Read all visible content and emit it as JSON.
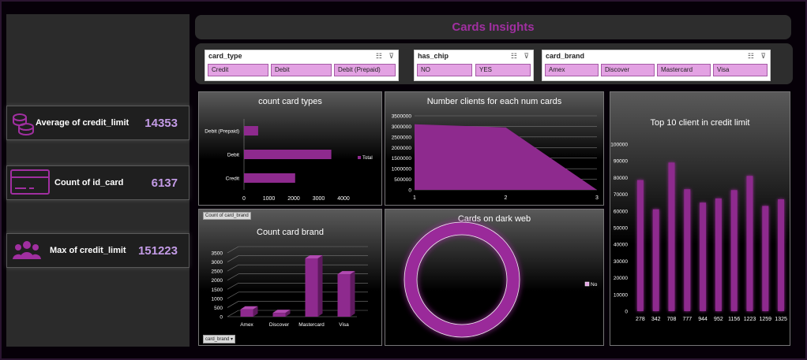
{
  "header": {
    "title": "Cards Insights"
  },
  "kpis": [
    {
      "icon": "coins-icon",
      "label": "Average of credit_limit",
      "value": "14353"
    },
    {
      "icon": "credit-card-icon",
      "label": "Count of id_card",
      "value": "6137"
    },
    {
      "icon": "people-icon",
      "label": "Max of credit_limit",
      "value": "151223"
    }
  ],
  "slicers": [
    {
      "title": "card_type",
      "items": [
        "Credit",
        "Debit",
        "Debit (Prepaid)"
      ]
    },
    {
      "title": "has_chip",
      "items": [
        "NO",
        "YES"
      ]
    },
    {
      "title": "card_brand",
      "items": [
        "Amex",
        "Discover",
        "Mastercard",
        "Visa"
      ]
    }
  ],
  "field_buttons": {
    "count_card_brand": "Count of card_brand",
    "card_brand": "card_brand"
  },
  "colors": {
    "accent": "#a02fa0",
    "bar": "#8e2a8e",
    "kpi_value": "#c39be6"
  },
  "chart_data": [
    {
      "type": "bar",
      "orientation": "horizontal",
      "title": "count card types",
      "categories": [
        "Credit",
        "Debit",
        "Debit (Prepaid)"
      ],
      "series": [
        {
          "name": "Total",
          "values": [
            2057,
            3511,
            569
          ]
        }
      ],
      "xlim": [
        0,
        4000
      ],
      "xticks": [
        "0",
        "1000",
        "2000",
        "3000",
        "4000"
      ],
      "legend": "right"
    },
    {
      "type": "area",
      "title": "Number clients for each num cards",
      "x": [
        1,
        2,
        3
      ],
      "values": [
        3100000,
        2950000,
        0
      ],
      "ylim": [
        0,
        3500000
      ],
      "yticks": [
        "0",
        "500000",
        "1000000",
        "1500000",
        "2000000",
        "2500000",
        "3000000",
        "3500000"
      ],
      "xticks": [
        "1",
        "2",
        "3"
      ]
    },
    {
      "type": "bar",
      "title": "Top 10 client in credit limit",
      "categories": [
        "278",
        "342",
        "708",
        "777",
        "944",
        "952",
        "1156",
        "1223",
        "1259",
        "1325"
      ],
      "values": [
        78500,
        61000,
        89000,
        73000,
        65000,
        67500,
        72500,
        81000,
        63000,
        67000
      ],
      "ylim": [
        0,
        100000
      ],
      "yticks": [
        "0",
        "10000",
        "20000",
        "30000",
        "40000",
        "50000",
        "60000",
        "70000",
        "80000",
        "90000",
        "100000"
      ]
    },
    {
      "type": "bar",
      "style": "3d",
      "title": "Count card brand",
      "categories": [
        "Amex",
        "Discover",
        "Mastercard",
        "Visa"
      ],
      "values": [
        400,
        210,
        3200,
        2330
      ],
      "ylim": [
        0,
        3500
      ],
      "yticks": [
        "0",
        "500",
        "1000",
        "1500",
        "2000",
        "2500",
        "3000",
        "3500"
      ]
    },
    {
      "type": "pie",
      "style": "donut",
      "title": "Cards on dark web",
      "categories": [
        "No"
      ],
      "values": [
        6137
      ],
      "legend": "right"
    }
  ]
}
